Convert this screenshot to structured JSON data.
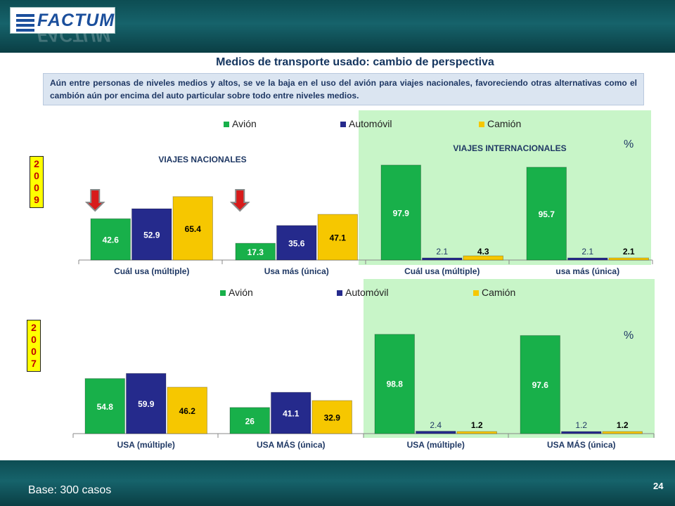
{
  "logo": {
    "text": "FACTUM"
  },
  "title": "Medios de transporte usado: cambio de perspectiva",
  "note": "Aún entre personas de niveles medios y altos, se ve la baja en  el uso del avión para viajes nacionales, favoreciendo otras alternativas como el cambión aún por encima del auto particular sobre todo entre niveles medios.",
  "years": {
    "top": [
      "2",
      "0",
      "0",
      "9"
    ],
    "bottom": [
      "2",
      "0",
      "0",
      "7"
    ]
  },
  "footer": {
    "base": "Base: 300 casos",
    "page": "24"
  },
  "colors": {
    "avion": "#18b04a",
    "automovil": "#252a8c",
    "camion": "#f6c700",
    "highlight": "#c8f5c8",
    "header": "#12575e",
    "arrow": "#d81b1b"
  },
  "chart_data": [
    {
      "type": "bar",
      "year": "2009",
      "legend": [
        "Avión",
        "Automóvil",
        "Camión"
      ],
      "unit_label": "%",
      "section_labels": [
        "VIAJES NACIONALES",
        "VIAJES INTERNACIONALES"
      ],
      "categories": [
        "Cuál usa (múltiple)",
        "Usa más (única)",
        "Cuál usa (múltiple)",
        "usa más (única)"
      ],
      "series": [
        {
          "name": "Avión",
          "values": [
            42.6,
            17.3,
            97.9,
            95.7
          ]
        },
        {
          "name": "Automóvil",
          "values": [
            52.9,
            35.6,
            2.1,
            2.1
          ]
        },
        {
          "name": "Camión",
          "values": [
            65.4,
            47.1,
            4.3,
            2.1
          ]
        }
      ],
      "highlight_categories": [
        2,
        3
      ],
      "decline_arrows_on": [
        0,
        1
      ],
      "ylim": [
        0,
        100
      ]
    },
    {
      "type": "bar",
      "year": "2007",
      "legend": [
        "Avión",
        "Automóvil",
        "Camión"
      ],
      "unit_label": "%",
      "categories": [
        "USA (múltiple)",
        "USA MÁS (única)",
        "USA (múltiple)",
        "USA MÁS (única)"
      ],
      "series": [
        {
          "name": "Avión",
          "values": [
            54.8,
            26,
            98.8,
            97.6
          ]
        },
        {
          "name": "Automóvil",
          "values": [
            59.9,
            41.1,
            2.4,
            1.2
          ]
        },
        {
          "name": "Camión",
          "values": [
            46.2,
            32.9,
            1.2,
            1.2
          ]
        }
      ],
      "highlight_categories": [
        2,
        3
      ],
      "ylim": [
        0,
        100
      ]
    }
  ]
}
